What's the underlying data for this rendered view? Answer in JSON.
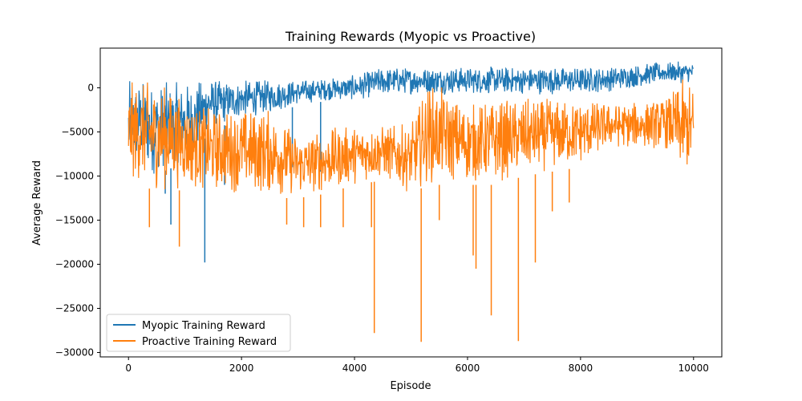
{
  "chart_data": {
    "type": "line",
    "title": "Training Rewards (Myopic vs Proactive)",
    "xlabel": "Episode",
    "ylabel": "Average Reward",
    "xlim": [
      -500,
      10500
    ],
    "ylim": [
      -30500,
      4500
    ],
    "xticks": [
      0,
      2000,
      4000,
      6000,
      8000,
      10000
    ],
    "yticks": [
      0,
      -5000,
      -10000,
      -15000,
      -20000,
      -25000,
      -30000
    ],
    "xtick_labels": [
      "0",
      "2000",
      "4000",
      "6000",
      "8000",
      "10000"
    ],
    "ytick_labels": [
      "0",
      "−5000",
      "−10000",
      "−15000",
      "−20000",
      "−25000",
      "−30000"
    ],
    "grid": false,
    "legend_position": "lower-left",
    "colors": {
      "myopic": "#1f77b4",
      "proactive": "#ff7f0e"
    },
    "series": [
      {
        "name": "Myopic Training Reward",
        "color": "#1f77b4",
        "band": [
          {
            "x": 0,
            "upper": 1000,
            "lower": -10000
          },
          {
            "x": 200,
            "upper": 1500,
            "lower": -9000
          },
          {
            "x": 400,
            "upper": 1000,
            "lower": -10300
          },
          {
            "x": 600,
            "upper": 1000,
            "lower": -9500
          },
          {
            "x": 800,
            "upper": 800,
            "lower": -9000
          },
          {
            "x": 1000,
            "upper": 1000,
            "lower": -8500
          },
          {
            "x": 1200,
            "upper": 1000,
            "lower": -8000
          },
          {
            "x": 1400,
            "upper": 1500,
            "lower": -5000
          },
          {
            "x": 1600,
            "upper": 1000,
            "lower": -4500
          },
          {
            "x": 2000,
            "upper": 1000,
            "lower": -3500
          },
          {
            "x": 2500,
            "upper": 1000,
            "lower": -3000
          },
          {
            "x": 3000,
            "upper": 1000,
            "lower": -2000
          },
          {
            "x": 3500,
            "upper": 1200,
            "lower": -1500
          },
          {
            "x": 4000,
            "upper": 1500,
            "lower": -1500
          },
          {
            "x": 4500,
            "upper": 2500,
            "lower": -1000
          },
          {
            "x": 5000,
            "upper": 2500,
            "lower": -800
          },
          {
            "x": 6000,
            "upper": 2500,
            "lower": -800
          },
          {
            "x": 7000,
            "upper": 2500,
            "lower": -800
          },
          {
            "x": 8000,
            "upper": 2500,
            "lower": -800
          },
          {
            "x": 8500,
            "upper": 2500,
            "lower": -500
          },
          {
            "x": 9000,
            "upper": 2800,
            "lower": 0
          },
          {
            "x": 9500,
            "upper": 3000,
            "lower": 500
          },
          {
            "x": 10000,
            "upper": 3000,
            "lower": 500
          }
        ],
        "spikes": [
          {
            "x": 750,
            "y": -15500
          },
          {
            "x": 1350,
            "y": -19800
          },
          {
            "x": 650,
            "y": -12000
          },
          {
            "x": 1700,
            "y": -11000
          },
          {
            "x": 2900,
            "y": -9000
          },
          {
            "x": 3400,
            "y": -9500
          }
        ]
      },
      {
        "name": "Proactive Training Reward",
        "color": "#ff7f0e",
        "band": [
          {
            "x": 0,
            "upper": 1000,
            "lower": -11000
          },
          {
            "x": 200,
            "upper": 1000,
            "lower": -11000
          },
          {
            "x": 600,
            "upper": 1000,
            "lower": -12000
          },
          {
            "x": 1000,
            "upper": -1000,
            "lower": -11500
          },
          {
            "x": 1400,
            "upper": -2000,
            "lower": -12000
          },
          {
            "x": 2000,
            "upper": -2000,
            "lower": -12000
          },
          {
            "x": 2500,
            "upper": -2000,
            "lower": -12500
          },
          {
            "x": 3000,
            "upper": -5000,
            "lower": -12500
          },
          {
            "x": 3500,
            "upper": -4500,
            "lower": -12000
          },
          {
            "x": 4000,
            "upper": -4000,
            "lower": -11000
          },
          {
            "x": 4500,
            "upper": -4000,
            "lower": -10500
          },
          {
            "x": 5000,
            "upper": -4000,
            "lower": -12000
          },
          {
            "x": 5300,
            "upper": 1000,
            "lower": -11000
          },
          {
            "x": 6000,
            "upper": -1500,
            "lower": -11000
          },
          {
            "x": 6500,
            "upper": -1000,
            "lower": -11000
          },
          {
            "x": 7000,
            "upper": -1000,
            "lower": -10000
          },
          {
            "x": 7500,
            "upper": -1000,
            "lower": -9500
          },
          {
            "x": 8000,
            "upper": -1000,
            "lower": -9000
          },
          {
            "x": 8500,
            "upper": -1500,
            "lower": -7000
          },
          {
            "x": 9000,
            "upper": -1500,
            "lower": -7000
          },
          {
            "x": 9500,
            "upper": -1000,
            "lower": -7000
          },
          {
            "x": 9800,
            "upper": 1000,
            "lower": -10000
          },
          {
            "x": 10000,
            "upper": 1000,
            "lower": -10000
          }
        ],
        "spikes": [
          {
            "x": 370,
            "y": -15800
          },
          {
            "x": 900,
            "y": -18000
          },
          {
            "x": 2800,
            "y": -15500
          },
          {
            "x": 3100,
            "y": -15800
          },
          {
            "x": 3400,
            "y": -15800
          },
          {
            "x": 3800,
            "y": -15800
          },
          {
            "x": 4300,
            "y": -15800
          },
          {
            "x": 4350,
            "y": -27800
          },
          {
            "x": 5180,
            "y": -28800
          },
          {
            "x": 5500,
            "y": -15000
          },
          {
            "x": 6100,
            "y": -19000
          },
          {
            "x": 6150,
            "y": -20500
          },
          {
            "x": 6420,
            "y": -25800
          },
          {
            "x": 6900,
            "y": -28700
          },
          {
            "x": 7200,
            "y": -19800
          },
          {
            "x": 7500,
            "y": -14000
          },
          {
            "x": 7800,
            "y": -13000
          }
        ]
      }
    ]
  }
}
